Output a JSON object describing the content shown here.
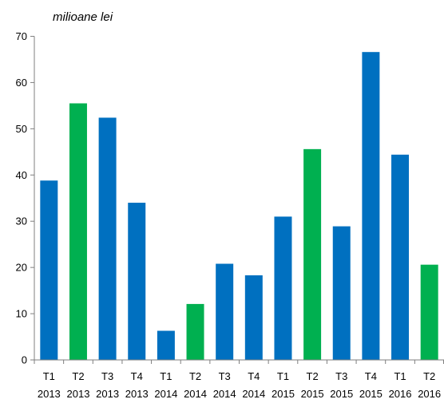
{
  "chart_data": {
    "type": "bar",
    "unit_label": "milioane lei",
    "categories": [
      [
        "T1",
        "2013"
      ],
      [
        "T2",
        "2013"
      ],
      [
        "T3",
        "2013"
      ],
      [
        "T4",
        "2013"
      ],
      [
        "T1",
        "2014"
      ],
      [
        "T2",
        "2014"
      ],
      [
        "T3",
        "2014"
      ],
      [
        "T4",
        "2014"
      ],
      [
        "T1",
        "2015"
      ],
      [
        "T2",
        "2015"
      ],
      [
        "T3",
        "2015"
      ],
      [
        "T4",
        "2015"
      ],
      [
        "T1",
        "2016"
      ],
      [
        "T2",
        "2016"
      ]
    ],
    "values": [
      38.8,
      55.5,
      52.4,
      34.0,
      6.3,
      12.1,
      20.8,
      18.3,
      31.0,
      45.6,
      28.9,
      66.6,
      44.4,
      20.6
    ],
    "bar_colors": [
      "#0070C0",
      "#00B050",
      "#0070C0",
      "#0070C0",
      "#0070C0",
      "#00B050",
      "#0070C0",
      "#0070C0",
      "#0070C0",
      "#00B050",
      "#0070C0",
      "#0070C0",
      "#0070C0",
      "#00B050"
    ],
    "ylim": [
      0,
      70
    ],
    "yticks": [
      0,
      10,
      20,
      30,
      40,
      50,
      60,
      70
    ],
    "grid": false,
    "legend": "none"
  }
}
